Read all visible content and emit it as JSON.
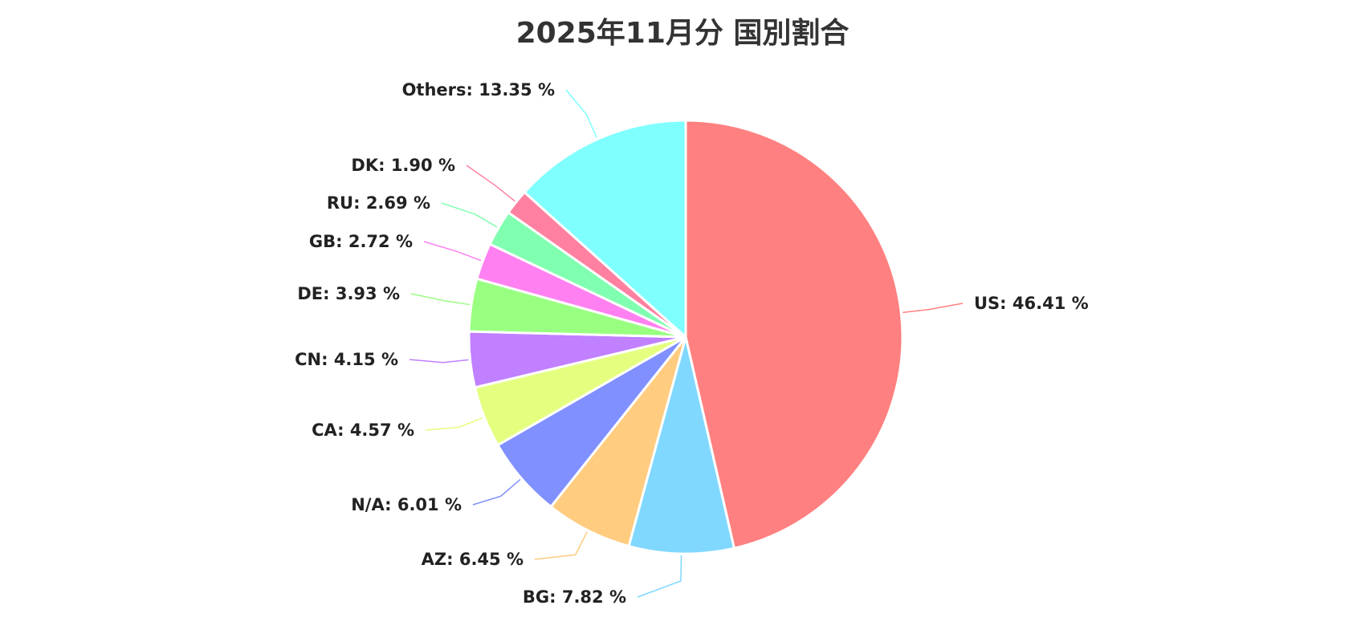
{
  "chart_data": {
    "type": "pie",
    "title": "2025年11月分 国別割合",
    "label_format": "{name}: {value} %",
    "slices": [
      {
        "name": "US",
        "value": 46.41,
        "color": "#ff8080"
      },
      {
        "name": "BG",
        "value": 7.82,
        "color": "#80d8ff"
      },
      {
        "name": "AZ",
        "value": 6.45,
        "color": "#ffcc80"
      },
      {
        "name": "N/A",
        "value": 6.01,
        "color": "#8090ff"
      },
      {
        "name": "CA",
        "value": 4.57,
        "color": "#e4ff80"
      },
      {
        "name": "CN",
        "value": 4.15,
        "color": "#c080ff"
      },
      {
        "name": "DE",
        "value": 3.93,
        "color": "#99ff80"
      },
      {
        "name": "GB",
        "value": 2.72,
        "color": "#ff80f0"
      },
      {
        "name": "RU",
        "value": 2.69,
        "color": "#80ffb0"
      },
      {
        "name": "DK",
        "value": 1.9,
        "color": "#ff80a0"
      },
      {
        "name": "Others",
        "value": 13.35,
        "color": "#80ffff"
      }
    ]
  }
}
